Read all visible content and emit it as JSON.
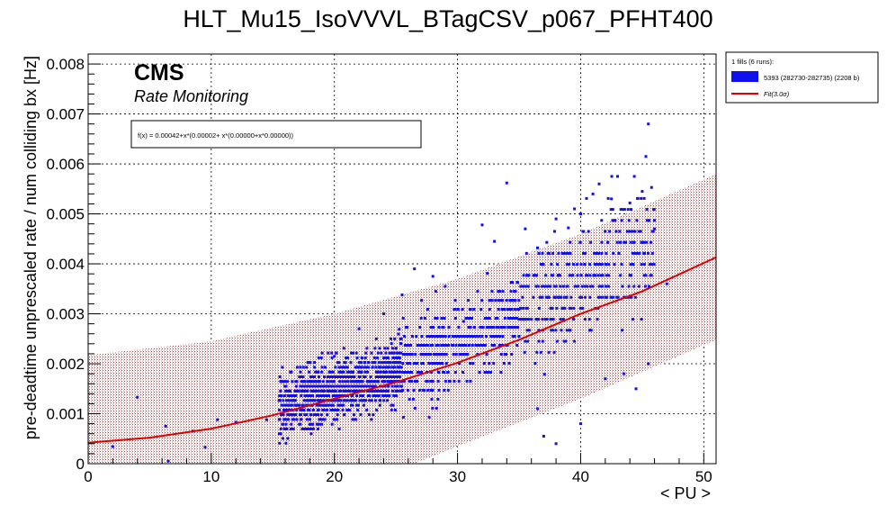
{
  "chart_data": {
    "type": "scatter",
    "title": "HLT_Mu15_IsoVVVL_BTagCSV_p067_PFHT400",
    "xlabel": "< PU >",
    "ylabel": "pre-deadtime unprescaled rate / num colliding bx [Hz]",
    "xlim": [
      0,
      51
    ],
    "ylim": [
      0,
      0.0082
    ],
    "x_ticks": [
      0,
      10,
      20,
      30,
      40,
      50
    ],
    "x_tick_labels": [
      "0",
      "10",
      "20",
      "30",
      "40",
      "50"
    ],
    "y_ticks": [
      0,
      0.001,
      0.002,
      0.003,
      0.004,
      0.005,
      0.006,
      0.007,
      0.008
    ],
    "y_tick_labels": [
      "0",
      "0.001",
      "0.002",
      "0.003",
      "0.004",
      "0.005",
      "0.006",
      "0.007",
      "0.008"
    ],
    "grid": true,
    "experiment_label": "CMS",
    "subtitle_label": "Rate Monitoring",
    "fit_formula_text": "f(x) = 0.00042+x*(0.00002+ x*(0.00000+x*0.00000))",
    "fit": {
      "name": "Fit(3.0σ)",
      "color": "#dd0000",
      "curve": [
        [
          0,
          0.00042
        ],
        [
          5,
          0.00052
        ],
        [
          10,
          0.0007
        ],
        [
          15,
          0.00097
        ],
        [
          20,
          0.0013
        ],
        [
          25,
          0.00163
        ],
        [
          30,
          0.00202
        ],
        [
          35,
          0.00248
        ],
        [
          40,
          0.003
        ],
        [
          45,
          0.00345
        ],
        [
          51,
          0.00413
        ]
      ],
      "band_upper": [
        [
          0,
          0.00217
        ],
        [
          10,
          0.00245
        ],
        [
          20,
          0.003
        ],
        [
          30,
          0.0037
        ],
        [
          40,
          0.0046
        ],
        [
          51,
          0.0058
        ]
      ],
      "band_lower": [
        [
          0,
          0.0
        ],
        [
          26.5,
          0.0
        ],
        [
          30,
          0.00035
        ],
        [
          40,
          0.0013
        ],
        [
          51,
          0.00248
        ]
      ],
      "band_color": "#8b1a1a"
    },
    "legend": {
      "header": "1 fills (6 runs):",
      "entries": [
        {
          "label": "5393 (282730-282735) (2208 b)",
          "color": "#1010ee",
          "kind": "box"
        },
        {
          "label": "Fit(3.0σ)",
          "color": "#dd0000",
          "kind": "line"
        }
      ]
    },
    "series": [
      {
        "name": "5393 (282730-282735) (2208 b)",
        "color": "#1010ee",
        "sparse_points": [
          [
            2.0,
            0.00034
          ],
          [
            4.0,
            0.00133
          ],
          [
            6.5,
            5e-05
          ],
          [
            6.3,
            0.00075
          ],
          [
            8.5,
            0.00065
          ],
          [
            9.5,
            0.00033
          ],
          [
            10.5,
            0.00088
          ],
          [
            12.0,
            0.00083
          ],
          [
            14.5,
            0.00088
          ],
          [
            20.0,
            0.00215
          ],
          [
            22.0,
            0.0027
          ],
          [
            24.0,
            0.003
          ],
          [
            25.5,
            0.00338
          ],
          [
            26.5,
            0.0039
          ],
          [
            28.0,
            0.00375
          ],
          [
            29.0,
            0.00355
          ],
          [
            30.5,
            0.00285
          ],
          [
            32.0,
            0.00478
          ],
          [
            33.0,
            0.00445
          ],
          [
            34.0,
            0.00562
          ],
          [
            35.5,
            0.0047
          ],
          [
            36.5,
            0.00432
          ],
          [
            38.0,
            0.0049
          ],
          [
            39.0,
            0.00472
          ],
          [
            39.5,
            0.0051
          ],
          [
            40.0,
            0.005
          ],
          [
            41.0,
            0.0054
          ],
          [
            41.5,
            0.0056
          ],
          [
            42.5,
            0.0053
          ],
          [
            43.0,
            0.00575
          ],
          [
            44.0,
            0.00522
          ],
          [
            45.0,
            0.00545
          ],
          [
            45.3,
            0.00615
          ],
          [
            45.5,
            0.0068
          ],
          [
            44.5,
            0.0015
          ],
          [
            36.5,
            0.0011
          ],
          [
            37.0,
            0.00055
          ],
          [
            38.0,
            0.0004
          ],
          [
            40.0,
            0.0008
          ],
          [
            42.0,
            0.0017
          ],
          [
            43.5,
            0.0018
          ],
          [
            46.0,
            0.0047
          ],
          [
            45.5,
            0.002
          ],
          [
            47.0,
            0.0036
          ]
        ],
        "dense_regions": [
          {
            "x": [
              15.5,
              25.5
            ],
            "y_center_coeffs": [
              0.00042,
              2e-05,
              1.5e-06
            ],
            "y_spread": 0.0011,
            "n": 900,
            "level_step": 9.5e-05
          },
          {
            "x": [
              25.5,
              35.0
            ],
            "y_center_coeffs": [
              0.00042,
              2e-05,
              1.5e-06
            ],
            "y_spread": 0.0015,
            "n": 420,
            "level_step": 0.00018
          },
          {
            "x": [
              35.0,
              46.0
            ],
            "y_center_coeffs": [
              0.00042,
              2e-05,
              1.5e-06
            ],
            "y_spread": 0.002,
            "n": 360,
            "level_step": 0.00022
          }
        ]
      }
    ]
  }
}
